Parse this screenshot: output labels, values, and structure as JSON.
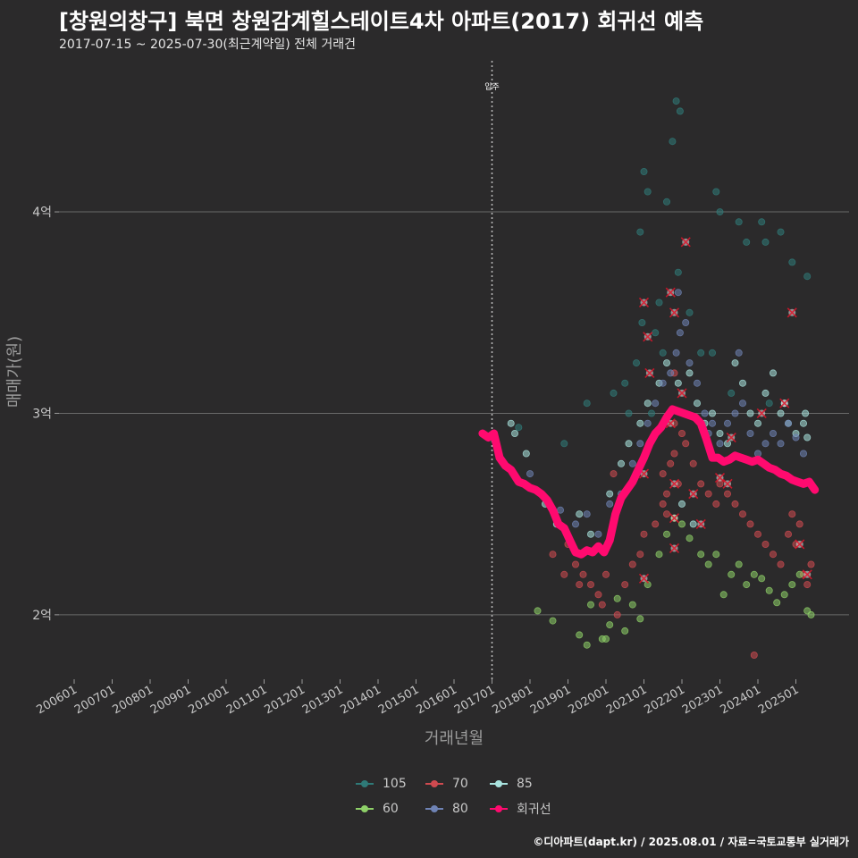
{
  "header": {
    "title": "[창원의창구] 북면 창원감계힐스테이트4차 아파트(2017) 회귀선 예측",
    "subtitle": "2017-07-15 ~ 2025-07-30(최근계약일) 전체 거래건"
  },
  "caption": "©디아파트(dapt.kr) / 2025.08.01 / 자료=국토교통부 실거래가",
  "chart_data": {
    "type": "scatter",
    "title": "[창원의창구] 북면 창원감계힐스테이트4차 아파트(2017) 회귀선 예측",
    "subtitle": "2017-07-15 ~ 2025-07-30(최근계약일) 전체 거래건",
    "xlabel": "거래년월",
    "ylabel": "매매가(원)",
    "xlim": [
      2005.6,
      2026.4
    ],
    "ylim": [
      1.68,
      4.75
    ],
    "y_unit": "억",
    "grid": "horizontal",
    "x_ticks": [
      {
        "label": "200601",
        "value": 2006.0
      },
      {
        "label": "200701",
        "value": 2007.0
      },
      {
        "label": "200801",
        "value": 2008.0
      },
      {
        "label": "200901",
        "value": 2009.0
      },
      {
        "label": "201001",
        "value": 2010.0
      },
      {
        "label": "201101",
        "value": 2011.0
      },
      {
        "label": "201201",
        "value": 2012.0
      },
      {
        "label": "201301",
        "value": 2013.0
      },
      {
        "label": "201401",
        "value": 2014.0
      },
      {
        "label": "201501",
        "value": 2015.0
      },
      {
        "label": "201601",
        "value": 2016.0
      },
      {
        "label": "201701",
        "value": 2017.0
      },
      {
        "label": "201801",
        "value": 2018.0
      },
      {
        "label": "201901",
        "value": 2019.0
      },
      {
        "label": "202001",
        "value": 2020.0
      },
      {
        "label": "202101",
        "value": 2021.0
      },
      {
        "label": "202201",
        "value": 2022.0
      },
      {
        "label": "202301",
        "value": 2023.0
      },
      {
        "label": "202401",
        "value": 2024.0
      },
      {
        "label": "202501",
        "value": 2025.0
      }
    ],
    "y_ticks": [
      {
        "label": "2억",
        "value": 2
      },
      {
        "label": "3억",
        "value": 3
      },
      {
        "label": "4억",
        "value": 4
      }
    ],
    "annotation": {
      "label": "입주",
      "x": 2017.0
    },
    "legend": {
      "position": "bottom",
      "items": [
        {
          "name": "105",
          "color": "#2f7a78"
        },
        {
          "name": "70",
          "color": "#d04a50"
        },
        {
          "name": "85",
          "color": "#a9e3df"
        },
        {
          "name": "60",
          "color": "#8ed068"
        },
        {
          "name": "80",
          "color": "#6f83b5"
        },
        {
          "name": "회귀선",
          "color": "#ff0a6f"
        }
      ]
    },
    "series": [
      {
        "name": "105",
        "color": "#2f7a78",
        "points": [
          [
            2017.7,
            2.93
          ],
          [
            2018.9,
            2.85
          ],
          [
            2019.5,
            3.05
          ],
          [
            2020.2,
            3.1
          ],
          [
            2020.6,
            3.0
          ],
          [
            2020.8,
            3.25
          ],
          [
            2020.95,
            3.45
          ],
          [
            2020.9,
            3.9
          ],
          [
            2021.0,
            4.2
          ],
          [
            2021.1,
            4.1
          ],
          [
            2021.3,
            3.4
          ],
          [
            2021.5,
            3.3
          ],
          [
            2021.6,
            4.05
          ],
          [
            2021.75,
            4.35
          ],
          [
            2021.85,
            4.55
          ],
          [
            2021.95,
            4.5
          ],
          [
            2021.4,
            3.55
          ],
          [
            2021.9,
            3.7
          ],
          [
            2022.2,
            3.5
          ],
          [
            2022.5,
            3.3
          ],
          [
            2022.9,
            4.1
          ],
          [
            2023.0,
            4.0
          ],
          [
            2023.5,
            3.95
          ],
          [
            2023.7,
            3.85
          ],
          [
            2024.1,
            3.95
          ],
          [
            2024.2,
            3.85
          ],
          [
            2024.6,
            3.9
          ],
          [
            2024.9,
            3.75
          ],
          [
            2025.3,
            3.68
          ],
          [
            2022.8,
            3.3
          ],
          [
            2023.3,
            3.1
          ],
          [
            2024.3,
            3.05
          ],
          [
            2021.2,
            3.0
          ],
          [
            2020.5,
            3.15
          ]
        ]
      },
      {
        "name": "70",
        "color": "#d04a50",
        "points": [
          [
            2019.0,
            2.35
          ],
          [
            2019.2,
            2.25
          ],
          [
            2019.4,
            2.2
          ],
          [
            2019.6,
            2.15
          ],
          [
            2019.8,
            2.1
          ],
          [
            2019.9,
            2.05
          ],
          [
            2020.0,
            2.2
          ],
          [
            2020.3,
            2.0
          ],
          [
            2020.5,
            2.15
          ],
          [
            2020.7,
            2.25
          ],
          [
            2020.9,
            2.3
          ],
          [
            2021.0,
            2.4
          ],
          [
            2021.3,
            2.45
          ],
          [
            2021.5,
            2.55
          ],
          [
            2021.5,
            2.7
          ],
          [
            2021.6,
            2.6
          ],
          [
            2021.7,
            2.75
          ],
          [
            2021.8,
            2.8
          ],
          [
            2021.9,
            2.65
          ],
          [
            2021.6,
            2.5
          ],
          [
            2022.0,
            2.9
          ],
          [
            2022.1,
            2.85
          ],
          [
            2022.3,
            2.75
          ],
          [
            2022.5,
            2.65
          ],
          [
            2022.7,
            2.6
          ],
          [
            2022.9,
            2.55
          ],
          [
            2023.0,
            2.65
          ],
          [
            2023.2,
            2.6
          ],
          [
            2023.4,
            2.55
          ],
          [
            2023.6,
            2.5
          ],
          [
            2023.8,
            2.45
          ],
          [
            2024.0,
            2.4
          ],
          [
            2024.2,
            2.35
          ],
          [
            2024.4,
            2.3
          ],
          [
            2024.6,
            2.25
          ],
          [
            2024.8,
            2.4
          ],
          [
            2025.0,
            2.35
          ],
          [
            2025.2,
            2.2
          ],
          [
            2025.3,
            2.15
          ],
          [
            2025.4,
            2.25
          ],
          [
            2023.9,
            1.8
          ],
          [
            2018.6,
            2.3
          ],
          [
            2018.9,
            2.2
          ],
          [
            2019.3,
            2.15
          ],
          [
            2024.9,
            2.5
          ],
          [
            2025.1,
            2.45
          ],
          [
            2021.8,
            3.2
          ],
          [
            2021.8,
            2.95
          ],
          [
            2020.2,
            2.7
          ]
        ]
      },
      {
        "name": "85",
        "color": "#a9e3df",
        "points": [
          [
            2017.5,
            2.95
          ],
          [
            2017.6,
            2.9
          ],
          [
            2017.9,
            2.8
          ],
          [
            2018.4,
            2.55
          ],
          [
            2018.7,
            2.45
          ],
          [
            2019.3,
            2.5
          ],
          [
            2019.6,
            2.4
          ],
          [
            2020.1,
            2.6
          ],
          [
            2020.4,
            2.75
          ],
          [
            2020.6,
            2.85
          ],
          [
            2020.9,
            2.95
          ],
          [
            2021.1,
            3.05
          ],
          [
            2021.4,
            3.15
          ],
          [
            2021.6,
            3.25
          ],
          [
            2021.9,
            3.15
          ],
          [
            2022.2,
            3.2
          ],
          [
            2022.4,
            3.05
          ],
          [
            2022.6,
            2.95
          ],
          [
            2022.8,
            3.0
          ],
          [
            2023.0,
            2.9
          ],
          [
            2023.2,
            2.85
          ],
          [
            2023.4,
            3.25
          ],
          [
            2023.6,
            3.15
          ],
          [
            2023.8,
            3.0
          ],
          [
            2024.0,
            2.95
          ],
          [
            2024.2,
            3.1
          ],
          [
            2024.4,
            3.2
          ],
          [
            2024.6,
            3.0
          ],
          [
            2024.8,
            2.95
          ],
          [
            2025.0,
            2.9
          ],
          [
            2025.2,
            2.95
          ],
          [
            2025.3,
            2.88
          ],
          [
            2025.25,
            3.0
          ],
          [
            2022.0,
            2.55
          ],
          [
            2022.3,
            2.45
          ],
          [
            2024.7,
            3.05
          ]
        ]
      },
      {
        "name": "60",
        "color": "#8ed068",
        "points": [
          [
            2018.2,
            2.02
          ],
          [
            2018.6,
            1.97
          ],
          [
            2019.1,
            2.35
          ],
          [
            2019.3,
            1.9
          ],
          [
            2019.6,
            2.05
          ],
          [
            2019.9,
            1.88
          ],
          [
            2020.1,
            1.95
          ],
          [
            2020.3,
            2.08
          ],
          [
            2020.5,
            1.92
          ],
          [
            2020.7,
            2.05
          ],
          [
            2020.9,
            1.98
          ],
          [
            2021.1,
            2.15
          ],
          [
            2021.4,
            2.3
          ],
          [
            2021.6,
            2.4
          ],
          [
            2021.8,
            2.48
          ],
          [
            2022.0,
            2.45
          ],
          [
            2022.2,
            2.38
          ],
          [
            2022.5,
            2.3
          ],
          [
            2022.7,
            2.25
          ],
          [
            2022.9,
            2.3
          ],
          [
            2023.1,
            2.1
          ],
          [
            2023.3,
            2.2
          ],
          [
            2023.5,
            2.25
          ],
          [
            2023.7,
            2.15
          ],
          [
            2023.9,
            2.2
          ],
          [
            2024.1,
            2.18
          ],
          [
            2024.3,
            2.12
          ],
          [
            2024.5,
            2.06
          ],
          [
            2024.7,
            2.1
          ],
          [
            2024.9,
            2.15
          ],
          [
            2025.1,
            2.2
          ],
          [
            2025.3,
            2.02
          ],
          [
            2025.4,
            2.0
          ],
          [
            2019.5,
            1.85
          ],
          [
            2020.0,
            1.88
          ]
        ]
      },
      {
        "name": "80",
        "color": "#6f83b5",
        "points": [
          [
            2018.0,
            2.7
          ],
          [
            2018.3,
            2.6
          ],
          [
            2018.8,
            2.52
          ],
          [
            2019.2,
            2.45
          ],
          [
            2019.5,
            2.5
          ],
          [
            2019.8,
            2.4
          ],
          [
            2020.1,
            2.55
          ],
          [
            2020.4,
            2.6
          ],
          [
            2020.7,
            2.75
          ],
          [
            2020.9,
            2.85
          ],
          [
            2021.1,
            2.95
          ],
          [
            2021.3,
            3.05
          ],
          [
            2021.5,
            3.15
          ],
          [
            2021.7,
            3.2
          ],
          [
            2021.85,
            3.3
          ],
          [
            2021.95,
            3.4
          ],
          [
            2022.1,
            3.45
          ],
          [
            2022.2,
            3.25
          ],
          [
            2022.4,
            3.15
          ],
          [
            2022.6,
            3.0
          ],
          [
            2022.8,
            2.95
          ],
          [
            2023.0,
            2.85
          ],
          [
            2023.2,
            2.95
          ],
          [
            2023.4,
            3.0
          ],
          [
            2023.6,
            3.05
          ],
          [
            2023.8,
            2.9
          ],
          [
            2024.0,
            2.8
          ],
          [
            2024.2,
            2.85
          ],
          [
            2024.4,
            2.9
          ],
          [
            2024.6,
            2.85
          ],
          [
            2024.8,
            2.95
          ],
          [
            2025.0,
            2.88
          ],
          [
            2025.2,
            2.8
          ],
          [
            2021.9,
            3.6
          ],
          [
            2023.5,
            3.3
          ],
          [
            2022.7,
            2.9
          ]
        ]
      }
    ],
    "outliers": [
      [
        2021.0,
        3.55
      ],
      [
        2021.1,
        3.38
      ],
      [
        2021.15,
        3.2
      ],
      [
        2021.7,
        3.6
      ],
      [
        2021.8,
        3.5
      ],
      [
        2022.0,
        3.1
      ],
      [
        2022.1,
        3.85
      ],
      [
        2021.8,
        2.65
      ],
      [
        2021.8,
        2.48
      ],
      [
        2021.8,
        2.33
      ],
      [
        2022.3,
        2.6
      ],
      [
        2022.5,
        2.45
      ],
      [
        2021.0,
        2.18
      ],
      [
        2023.0,
        2.68
      ],
      [
        2023.3,
        2.88
      ],
      [
        2023.2,
        2.65
      ],
      [
        2024.1,
        3.0
      ],
      [
        2024.7,
        3.05
      ],
      [
        2025.1,
        2.35
      ],
      [
        2024.9,
        3.5
      ],
      [
        2025.3,
        2.2
      ],
      [
        2021.0,
        2.7
      ],
      [
        2021.7,
        2.95
      ]
    ],
    "regression": {
      "name": "회귀선",
      "color": "#ff0a6f",
      "points": [
        [
          2016.75,
          2.9
        ],
        [
          2016.9,
          2.88
        ],
        [
          2017.05,
          2.9
        ],
        [
          2017.2,
          2.78
        ],
        [
          2017.35,
          2.74
        ],
        [
          2017.5,
          2.72
        ],
        [
          2017.7,
          2.66
        ],
        [
          2017.85,
          2.65
        ],
        [
          2018.0,
          2.63
        ],
        [
          2018.15,
          2.62
        ],
        [
          2018.3,
          2.6
        ],
        [
          2018.45,
          2.57
        ],
        [
          2018.6,
          2.52
        ],
        [
          2018.75,
          2.45
        ],
        [
          2018.9,
          2.43
        ],
        [
          2019.05,
          2.37
        ],
        [
          2019.2,
          2.31
        ],
        [
          2019.35,
          2.3
        ],
        [
          2019.5,
          2.32
        ],
        [
          2019.65,
          2.31
        ],
        [
          2019.8,
          2.34
        ],
        [
          2019.95,
          2.31
        ],
        [
          2020.1,
          2.37
        ],
        [
          2020.25,
          2.5
        ],
        [
          2020.4,
          2.58
        ],
        [
          2020.55,
          2.62
        ],
        [
          2020.7,
          2.66
        ],
        [
          2020.85,
          2.72
        ],
        [
          2021.0,
          2.78
        ],
        [
          2021.15,
          2.85
        ],
        [
          2021.3,
          2.9
        ],
        [
          2021.45,
          2.93
        ],
        [
          2021.6,
          2.98
        ],
        [
          2021.75,
          3.02
        ],
        [
          2021.9,
          3.01
        ],
        [
          2022.05,
          3.0
        ],
        [
          2022.2,
          2.99
        ],
        [
          2022.35,
          2.98
        ],
        [
          2022.5,
          2.95
        ],
        [
          2022.65,
          2.87
        ],
        [
          2022.8,
          2.78
        ],
        [
          2022.95,
          2.78
        ],
        [
          2023.1,
          2.76
        ],
        [
          2023.25,
          2.77
        ],
        [
          2023.4,
          2.79
        ],
        [
          2023.55,
          2.78
        ],
        [
          2023.7,
          2.77
        ],
        [
          2023.85,
          2.76
        ],
        [
          2024.0,
          2.77
        ],
        [
          2024.15,
          2.75
        ],
        [
          2024.3,
          2.73
        ],
        [
          2024.45,
          2.72
        ],
        [
          2024.6,
          2.7
        ],
        [
          2024.75,
          2.69
        ],
        [
          2024.9,
          2.67
        ],
        [
          2025.05,
          2.66
        ],
        [
          2025.2,
          2.65
        ],
        [
          2025.35,
          2.66
        ],
        [
          2025.5,
          2.62
        ]
      ]
    }
  }
}
